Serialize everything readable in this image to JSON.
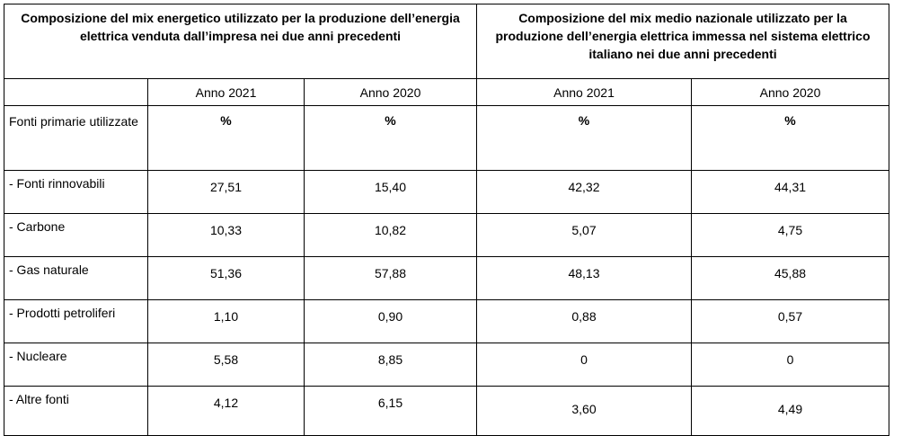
{
  "header_left": "Composizione del mix energetico utilizzato per la produzione dell’energia elettrica venduta dall’impresa nei due anni precedenti",
  "header_right": "Composizione del mix medio nazionale utilizzato per la produzione dell’energia elettrica immessa nel sistema elettrico italiano nei due anni precedenti",
  "years": [
    "Anno 2021",
    "Anno 2020",
    "Anno 2021",
    "Anno 2020"
  ],
  "units_label": "Fonti primarie utilizzate",
  "units": [
    "%",
    "%",
    "%",
    "%"
  ],
  "rows": [
    {
      "label": "- Fonti rinnovabili",
      "values": [
        "27,51",
        "15,40",
        "42,32",
        "44,31"
      ]
    },
    {
      "label": "- Carbone",
      "values": [
        "10,33",
        "10,82",
        "5,07",
        "4,75"
      ]
    },
    {
      "label": "- Gas naturale",
      "values": [
        "51,36",
        "57,88",
        "48,13",
        "45,88"
      ]
    },
    {
      "label": "- Prodotti petroliferi",
      "values": [
        "1,10",
        "0,90",
        "0,88",
        "0,57"
      ]
    },
    {
      "label": "- Nucleare",
      "values": [
        "5,58",
        "8,85",
        "0",
        "0"
      ]
    },
    {
      "label": "- Altre fonti",
      "values": [
        "4,12",
        "6,15",
        "3,60",
        "4,49"
      ]
    }
  ]
}
